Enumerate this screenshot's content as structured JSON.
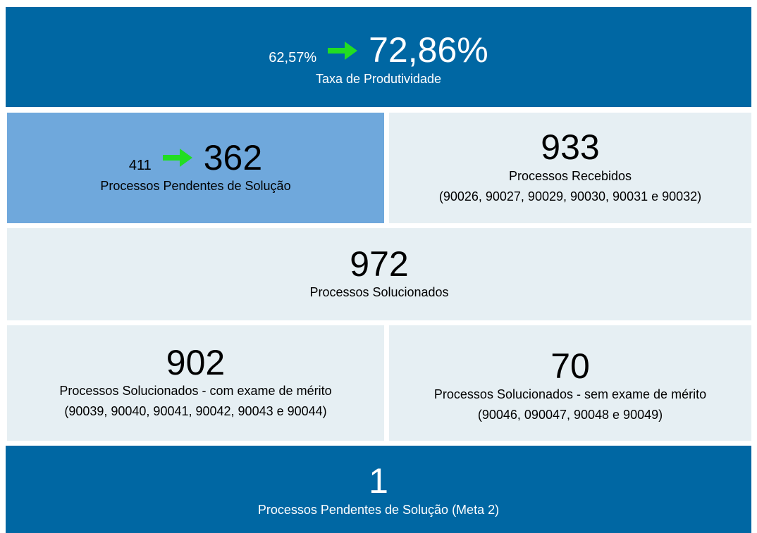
{
  "panels": [
    {
      "from": "62,57%",
      "to": "72,86%",
      "label": "Taxa de Produtividade"
    },
    {
      "from": "411",
      "to": "362",
      "label": "Processos Pendentes de Solução"
    },
    {
      "value": "933",
      "label": "Processos Recebidos",
      "detail": "(90026, 90027, 90029, 90030, 90031 e 90032)"
    },
    {
      "value": "972",
      "label": "Processos Solucionados"
    },
    {
      "value": "902",
      "label": "Processos Solucionados - com exame de mérito",
      "detail": "(90039, 90040, 90041, 90042, 90043 e 90044)"
    },
    {
      "value": "70",
      "label": "Processos Solucionados - sem exame de mérito",
      "detail": "(90046, 090047, 90048 e 90049)"
    },
    {
      "value": "1",
      "label": "Processos Pendentes de Solução (Meta 2)"
    }
  ]
}
